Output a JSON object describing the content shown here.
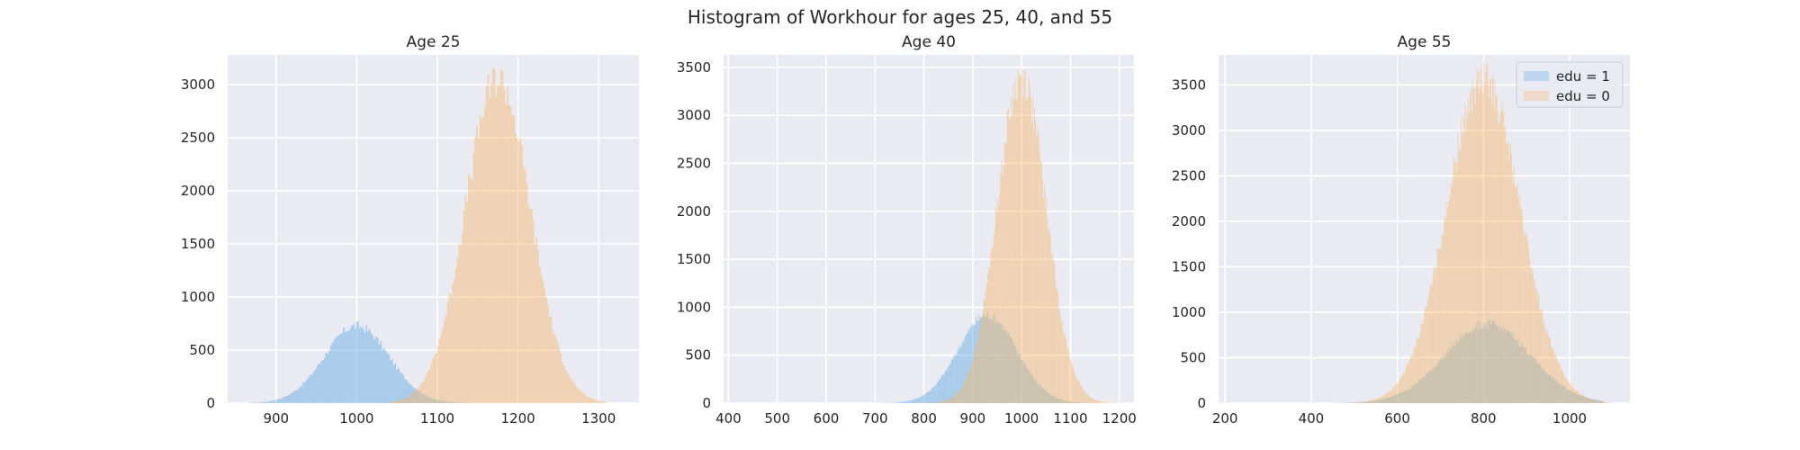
{
  "figure": {
    "title": "Histogram of Workhour for ages 25, 40, and 55"
  },
  "colors": {
    "edu1": "#5aa9e0",
    "edu0": "#f6b567",
    "panel_bg": "#eaeaf2",
    "grid": "#ffffff"
  },
  "legend": {
    "placement": "top-right of third panel",
    "entries": [
      {
        "label": "edu = 1",
        "series": "edu1"
      },
      {
        "label": "edu = 0",
        "series": "edu0"
      }
    ]
  },
  "chart_data": [
    {
      "type": "histogram",
      "title": "Age 25",
      "xlim": [
        840,
        1350
      ],
      "ylim": [
        0,
        3280
      ],
      "x_ticks": [
        900,
        1000,
        1100,
        1200,
        1300
      ],
      "y_ticks": [
        0,
        500,
        1000,
        1500,
        2000,
        2500,
        3000
      ],
      "grid": true,
      "series": [
        {
          "key": "edu1",
          "mean": 1000,
          "sd": 40,
          "peak": 730,
          "range": [
            865,
            1135
          ]
        },
        {
          "key": "edu0",
          "mean": 1175,
          "sd": 40,
          "peak": 3060,
          "range": [
            1040,
            1310
          ]
        }
      ]
    },
    {
      "type": "histogram",
      "title": "Age 40",
      "xlim": [
        390,
        1230
      ],
      "ylim": [
        0,
        3630
      ],
      "x_ticks": [
        400,
        500,
        600,
        700,
        800,
        900,
        1000,
        1100,
        1200
      ],
      "y_ticks": [
        0,
        500,
        1000,
        1500,
        2000,
        2500,
        3000,
        3500
      ],
      "grid": true,
      "series": [
        {
          "key": "edu1",
          "mean": 930,
          "sd": 60,
          "peak": 920,
          "range": [
            700,
            1160
          ]
        },
        {
          "key": "edu0",
          "mean": 1000,
          "sd": 50,
          "peak": 3400,
          "range": [
            760,
            1195
          ]
        }
      ]
    },
    {
      "type": "histogram",
      "title": "Age 55",
      "xlim": [
        185,
        1140
      ],
      "ylim": [
        0,
        3830
      ],
      "x_ticks": [
        200,
        400,
        600,
        800,
        1000
      ],
      "y_ticks": [
        0,
        500,
        1000,
        1500,
        2000,
        2500,
        3000,
        3500
      ],
      "grid": true,
      "series": [
        {
          "key": "edu1",
          "mean": 810,
          "sd": 100,
          "peak": 870,
          "range": [
            460,
            1080
          ]
        },
        {
          "key": "edu0",
          "mean": 800,
          "sd": 85,
          "peak": 3560,
          "range": [
            480,
            1090
          ]
        }
      ]
    }
  ]
}
